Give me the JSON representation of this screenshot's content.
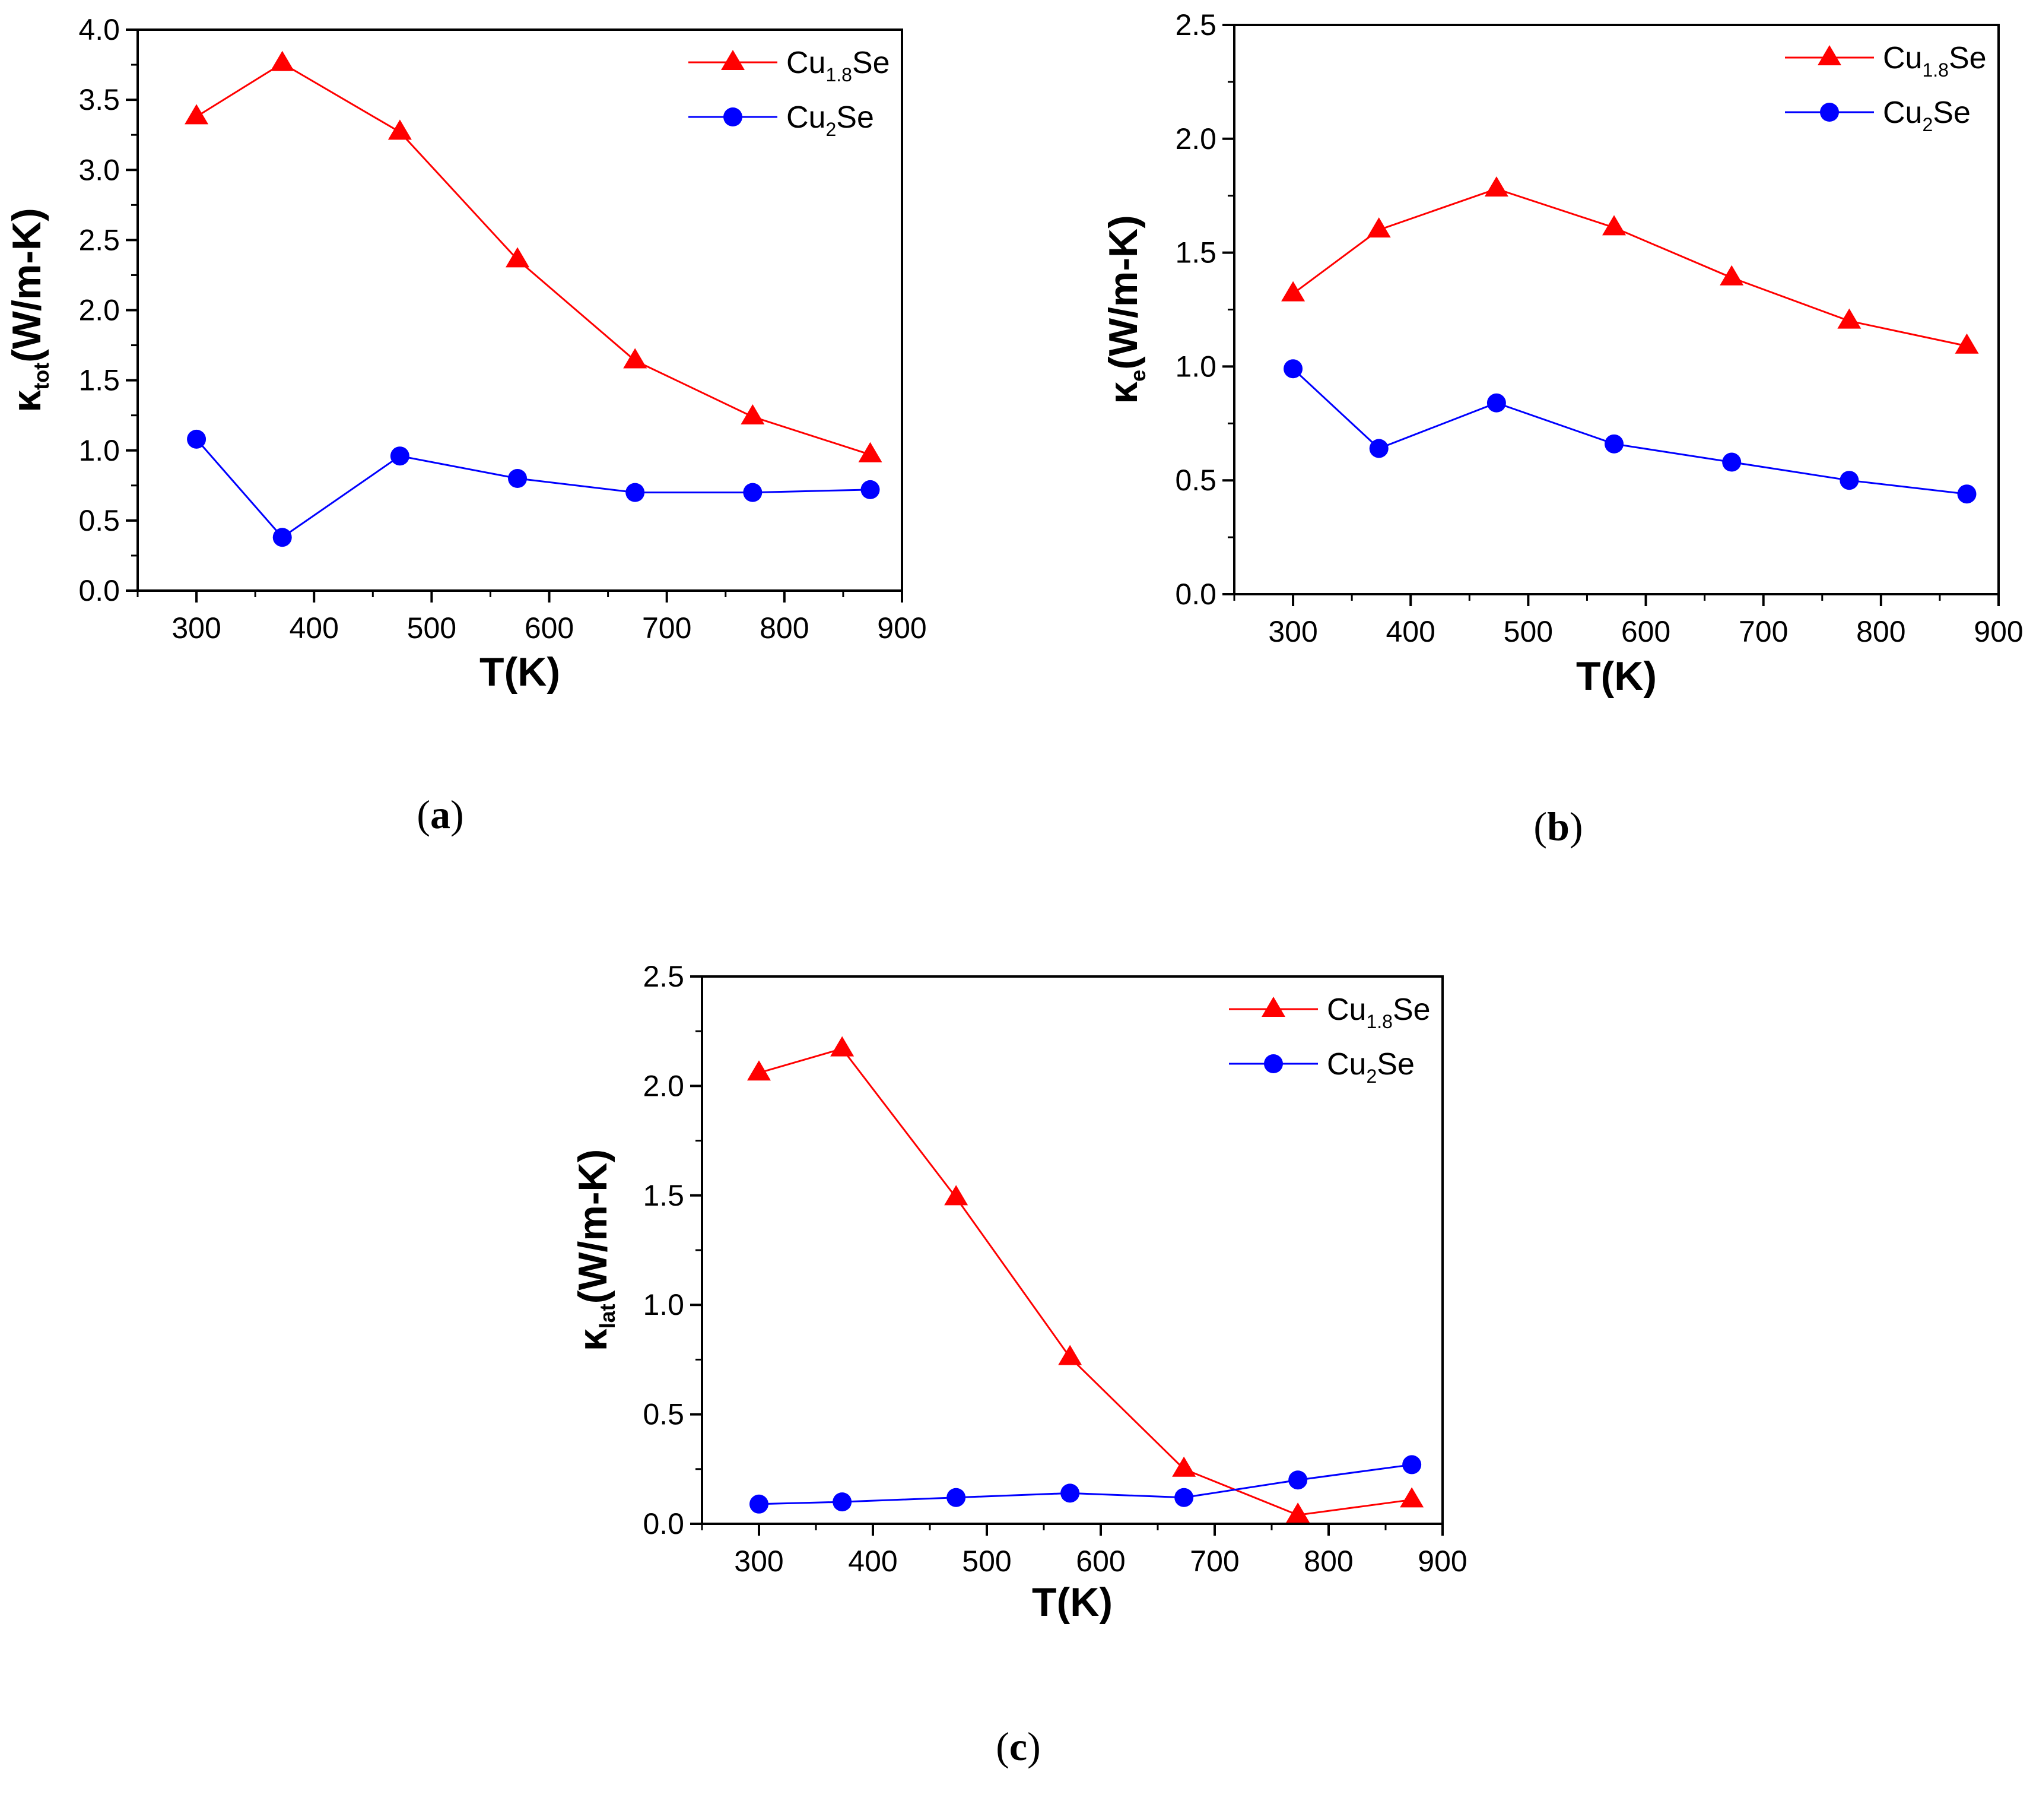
{
  "colors": {
    "cu18se": "#ff0000",
    "cu2se": "#0000ff",
    "axis": "#000000"
  },
  "chart_data": [
    {
      "id": "a",
      "type": "line",
      "panel_label": "(a)",
      "panel_letter": "a",
      "xlabel": "T(K)",
      "ylabel": {
        "symbol": "κ",
        "sub": "tot",
        "unit": "(W/m-K)"
      },
      "xlim": [
        250,
        900
      ],
      "ylim": [
        0.0,
        4.0
      ],
      "xticks": [
        "300",
        "400",
        "500",
        "600",
        "700",
        "800",
        "900"
      ],
      "yticks": [
        "0.0",
        "0.5",
        "1.0",
        "1.5",
        "2.0",
        "2.5",
        "3.0",
        "3.5",
        "4.0"
      ],
      "legend_position": "top-right",
      "series": [
        {
          "name": "Cu1.8Se",
          "label_base": "Cu",
          "label_sub": "1.8",
          "label_tail": "Se",
          "marker": "triangle",
          "color": "#ff0000",
          "x": [
            300,
            373,
            473,
            573,
            673,
            773,
            873
          ],
          "y": [
            3.38,
            3.76,
            3.27,
            2.36,
            1.64,
            1.24,
            0.97
          ]
        },
        {
          "name": "Cu2Se",
          "label_base": "Cu",
          "label_sub": "2",
          "label_tail": "Se",
          "marker": "circle",
          "color": "#0000ff",
          "x": [
            300,
            373,
            473,
            573,
            673,
            773,
            873
          ],
          "y": [
            1.08,
            0.38,
            0.96,
            0.8,
            0.7,
            0.7,
            0.72
          ]
        }
      ]
    },
    {
      "id": "b",
      "type": "line",
      "panel_label": "(b)",
      "panel_letter": "b",
      "xlabel": "T(K)",
      "ylabel": {
        "symbol": "κ",
        "sub": "e",
        "unit": "(W/m-K)"
      },
      "xlim": [
        250,
        900
      ],
      "ylim": [
        0.0,
        2.5
      ],
      "xticks": [
        "300",
        "400",
        "500",
        "600",
        "700",
        "800",
        "900"
      ],
      "yticks": [
        "0.0",
        "0.5",
        "1.0",
        "1.5",
        "2.0",
        "2.5"
      ],
      "legend_position": "top-right",
      "series": [
        {
          "name": "Cu1.8Se",
          "label_base": "Cu",
          "label_sub": "1.8",
          "label_tail": "Se",
          "marker": "triangle",
          "color": "#ff0000",
          "x": [
            300,
            373,
            473,
            573,
            673,
            773,
            873
          ],
          "y": [
            1.32,
            1.6,
            1.78,
            1.61,
            1.39,
            1.2,
            1.09
          ]
        },
        {
          "name": "Cu2Se",
          "label_base": "Cu",
          "label_sub": "2",
          "label_tail": "Se",
          "marker": "circle",
          "color": "#0000ff",
          "x": [
            300,
            373,
            473,
            573,
            673,
            773,
            873
          ],
          "y": [
            0.99,
            0.64,
            0.84,
            0.66,
            0.58,
            0.5,
            0.44
          ]
        }
      ]
    },
    {
      "id": "c",
      "type": "line",
      "panel_label": "(c)",
      "panel_letter": "c",
      "xlabel": "T(K)",
      "ylabel": {
        "symbol": "κ",
        "sub": "lat",
        "unit": "(W/m-K)"
      },
      "xlim": [
        250,
        900
      ],
      "ylim": [
        0.0,
        2.5
      ],
      "xticks": [
        "300",
        "400",
        "500",
        "600",
        "700",
        "800",
        "900"
      ],
      "yticks": [
        "0.0",
        "0.5",
        "1.0",
        "1.5",
        "2.0",
        "2.5"
      ],
      "legend_position": "top-right",
      "series": [
        {
          "name": "Cu1.8Se",
          "label_base": "Cu",
          "label_sub": "1.8",
          "label_tail": "Se",
          "marker": "triangle",
          "color": "#ff0000",
          "x": [
            300,
            373,
            473,
            573,
            673,
            773,
            873
          ],
          "y": [
            2.06,
            2.17,
            1.49,
            0.76,
            0.25,
            0.04,
            0.11
          ]
        },
        {
          "name": "Cu2Se",
          "label_base": "Cu",
          "label_sub": "2",
          "label_tail": "Se",
          "marker": "circle",
          "color": "#0000ff",
          "x": [
            300,
            373,
            473,
            573,
            673,
            773,
            873
          ],
          "y": [
            0.09,
            0.1,
            0.12,
            0.14,
            0.12,
            0.2,
            0.27
          ]
        }
      ]
    }
  ]
}
